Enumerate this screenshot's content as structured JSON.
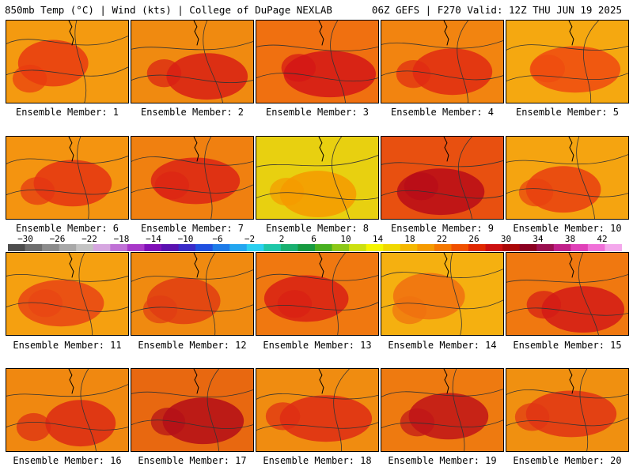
{
  "header": {
    "left": "850mb Temp (°C) | Wind (kts) | College of DuPage NEXLAB",
    "right": "06Z GEFS | F270 Valid: 12Z THU JUN 19 2025"
  },
  "colorbar": {
    "ticks": [
      "−30",
      "−26",
      "−22",
      "−18",
      "−14",
      "−10",
      "−6",
      "−2",
      "2",
      "6",
      "10",
      "14",
      "18",
      "22",
      "26",
      "30",
      "34",
      "38",
      "42"
    ],
    "colors": [
      "#4d4d4d",
      "#6e6e6e",
      "#8c8c8c",
      "#a8a8a8",
      "#c4c4c4",
      "#d6a6e0",
      "#c071d6",
      "#a838c8",
      "#8010b8",
      "#5a12b0",
      "#3a2cc8",
      "#1f50e0",
      "#1d7be8",
      "#23a6f0",
      "#2bd0f0",
      "#1ec7a8",
      "#19b070",
      "#169a40",
      "#48b020",
      "#8cc818",
      "#cce010",
      "#f5f500",
      "#f0d800",
      "#f5b800",
      "#f59a00",
      "#f57800",
      "#f05000",
      "#e02800",
      "#cc1010",
      "#aa0808",
      "#8a0020",
      "#9a1050",
      "#c0208a",
      "#e040b8",
      "#f070d8",
      "#f4a8ec"
    ]
  },
  "members": [
    {
      "label": "Ensemble Member: 1",
      "bg": "#f49a10",
      "blob": "#e83a10"
    },
    {
      "label": "Ensemble Member: 2",
      "bg": "#f08a10",
      "blob": "#d81e14"
    },
    {
      "label": "Ensemble Member: 3",
      "bg": "#f07010",
      "blob": "#d41616"
    },
    {
      "label": "Ensemble Member: 4",
      "bg": "#f28410",
      "blob": "#e02a12"
    },
    {
      "label": "Ensemble Member: 5",
      "bg": "#f5a810",
      "blob": "#ee4a10"
    },
    {
      "label": "Ensemble Member: 6",
      "bg": "#f49410",
      "blob": "#e43412"
    },
    {
      "label": "Ensemble Member: 7",
      "bg": "#f08010",
      "blob": "#dc2414"
    },
    {
      "label": "Ensemble Member: 8",
      "bg": "#e8d010",
      "blob": "#f59a00"
    },
    {
      "label": "Ensemble Member: 9",
      "bg": "#e85010",
      "blob": "#b80c18"
    },
    {
      "label": "Ensemble Member: 10",
      "bg": "#f5a410",
      "blob": "#e84010"
    },
    {
      "label": "Ensemble Member: 11",
      "bg": "#f5a010",
      "blob": "#e84414"
    },
    {
      "label": "Ensemble Member: 12",
      "bg": "#f08a10",
      "blob": "#e03c12"
    },
    {
      "label": "Ensemble Member: 13",
      "bg": "#f07810",
      "blob": "#d82014"
    },
    {
      "label": "Ensemble Member: 14",
      "bg": "#f5b010",
      "blob": "#f07010"
    },
    {
      "label": "Ensemble Member: 15",
      "bg": "#f07810",
      "blob": "#d41a16"
    },
    {
      "label": "Ensemble Member: 16",
      "bg": "#f08810",
      "blob": "#dc2a14"
    },
    {
      "label": "Ensemble Member: 17",
      "bg": "#e86810",
      "blob": "#b40e18"
    },
    {
      "label": "Ensemble Member: 18",
      "bg": "#f08c10",
      "blob": "#de2c14"
    },
    {
      "label": "Ensemble Member: 19",
      "bg": "#ee7a10",
      "blob": "#c01418"
    },
    {
      "label": "Ensemble Member: 20",
      "bg": "#f09010",
      "blob": "#e03414"
    }
  ]
}
